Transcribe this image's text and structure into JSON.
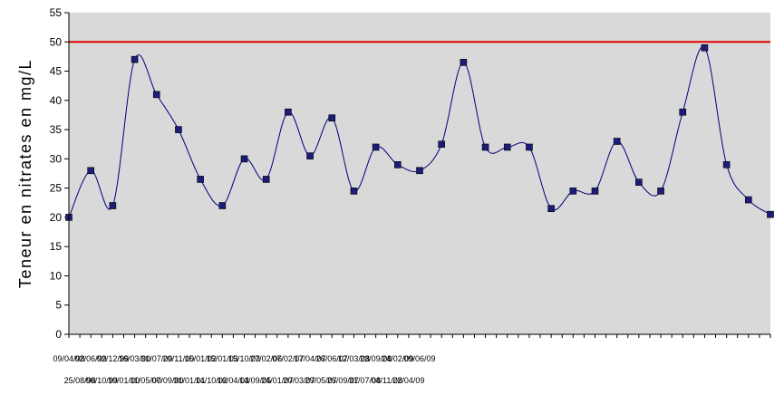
{
  "chart_data": {
    "type": "line",
    "title": "",
    "xlabel": "",
    "ylabel": "Teneur en nitrates en mg/L",
    "ylim": [
      0,
      55
    ],
    "yticks": [
      0,
      5,
      10,
      15,
      20,
      25,
      30,
      35,
      40,
      45,
      50,
      55
    ],
    "grid": false,
    "legend": "none",
    "colors": {
      "plot_background": "#d9d9d9",
      "series_line": "#00007a",
      "marker": "#1c1c7a",
      "threshold": "#e00000"
    },
    "reference_lines": [
      {
        "y": 50,
        "color": "#e00000"
      }
    ],
    "categories": [
      "09/04/98",
      "25/08/98",
      "02/06/99",
      "06/10/99",
      "02/12/99",
      "10/01/00",
      "16/03/00",
      "11/05/00",
      "31/07/00",
      "07/09/00",
      "29/11/00",
      "31/01/01",
      "15/01/02",
      "14/10/02",
      "15/01/03",
      "16/04/03",
      "15/10/03",
      "14/09/05",
      "27/02/06",
      "24/01/07",
      "07/02/07",
      "20/03/07",
      "17/04/07",
      "29/05/07",
      "26/06/07",
      "25/09/07",
      "12/03/08",
      "31/07/08",
      "23/09/08",
      "04/11/08",
      "24/02/09",
      "22/04/09",
      "09/06/09"
    ],
    "series": [
      {
        "name": "",
        "values": [
          20,
          28,
          22,
          47,
          41,
          35,
          26.5,
          22,
          30,
          26.5,
          38,
          30.5,
          37,
          24.5,
          32,
          29,
          28,
          32.5,
          46.5,
          32,
          32,
          32,
          21.5,
          24.5,
          24.5,
          33,
          26,
          24.5,
          38,
          49,
          29,
          23,
          20.5
        ]
      }
    ]
  }
}
